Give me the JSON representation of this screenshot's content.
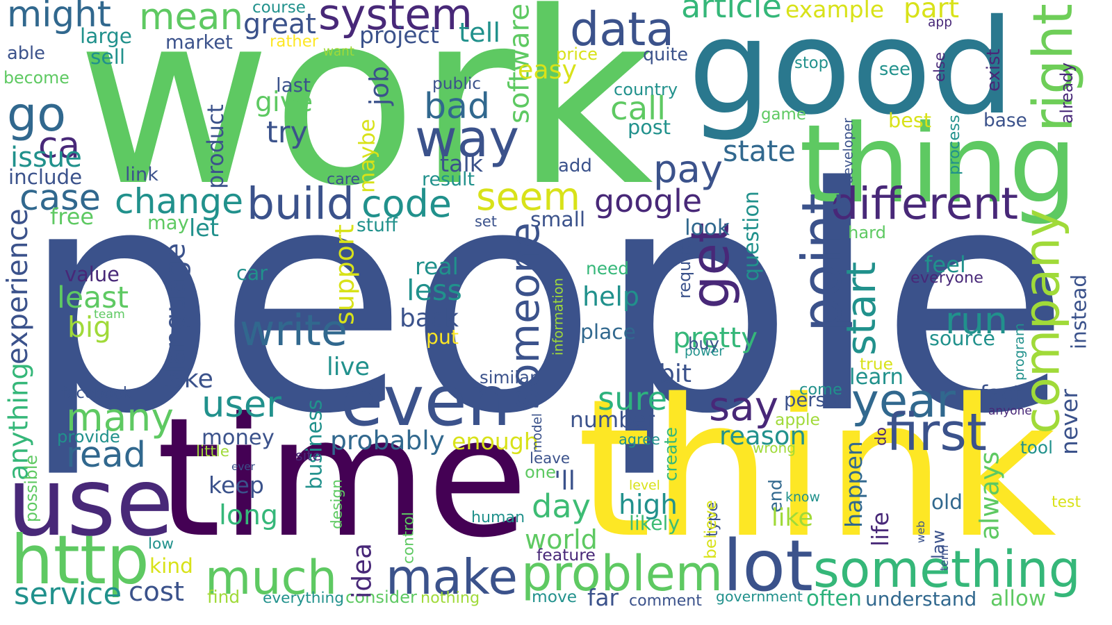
{
  "words": [
    {
      "text": "work",
      "color": "#5ec962"
    },
    {
      "text": "people",
      "color": "#3b528b"
    },
    {
      "text": "good",
      "color": "#2a788e"
    },
    {
      "text": "time",
      "color": "#440154"
    },
    {
      "text": "think",
      "color": "#fde725"
    },
    {
      "text": "use",
      "color": "#482878"
    },
    {
      "text": "thing",
      "color": "#5ec962"
    },
    {
      "text": "even",
      "color": "#3b528b"
    },
    {
      "text": "http",
      "color": "#5ec962"
    },
    {
      "text": "much",
      "color": "#5ec962"
    },
    {
      "text": "make",
      "color": "#3b528b"
    },
    {
      "text": "problem",
      "color": "#5ec962"
    },
    {
      "text": "lot",
      "color": "#3b528b"
    },
    {
      "text": "something",
      "color": "#35b779"
    },
    {
      "text": "way",
      "color": "#3b528b"
    },
    {
      "text": "data",
      "color": "#3b528b"
    },
    {
      "text": "system",
      "color": "#482878"
    },
    {
      "text": "mean",
      "color": "#5ec962"
    },
    {
      "text": "might",
      "color": "#31688e"
    },
    {
      "text": "go",
      "color": "#31688e"
    },
    {
      "text": "ca",
      "color": "#482878"
    },
    {
      "text": "case",
      "color": "#31688e"
    },
    {
      "text": "change",
      "color": "#21918c"
    },
    {
      "text": "build",
      "color": "#3b528b"
    },
    {
      "text": "code",
      "color": "#21918c"
    },
    {
      "text": "seem",
      "color": "#d8e219"
    },
    {
      "text": "google",
      "color": "#482878"
    },
    {
      "text": "different",
      "color": "#482878"
    },
    {
      "text": "pay",
      "color": "#3b528b"
    },
    {
      "text": "state",
      "color": "#31688e"
    },
    {
      "text": "bad",
      "color": "#31688e"
    },
    {
      "text": "right",
      "color": "#6ece58"
    },
    {
      "text": "company",
      "color": "#a0da39"
    },
    {
      "text": "year",
      "color": "#31688e"
    },
    {
      "text": "say",
      "color": "#482878"
    },
    {
      "text": "first",
      "color": "#3b528b"
    },
    {
      "text": "get",
      "color": "#482878"
    },
    {
      "text": "point",
      "color": "#3b528b"
    },
    {
      "text": "start",
      "color": "#21918c"
    },
    {
      "text": "many",
      "color": "#5ec962"
    },
    {
      "text": "user",
      "color": "#21918c"
    },
    {
      "text": "read",
      "color": "#31688e"
    },
    {
      "text": "write",
      "color": "#31688e"
    },
    {
      "text": "someone",
      "color": "#3b528b"
    },
    {
      "text": "run",
      "color": "#21918c"
    },
    {
      "text": "sure",
      "color": "#2db27d"
    },
    {
      "text": "probably",
      "color": "#31688e"
    },
    {
      "text": "enough",
      "color": "#d8e219"
    },
    {
      "text": "reason",
      "color": "#21918c"
    },
    {
      "text": "day",
      "color": "#3dbc74"
    },
    {
      "text": "world",
      "color": "#5ec962"
    },
    {
      "text": "high",
      "color": "#21918c"
    },
    {
      "text": "long",
      "color": "#35b779"
    },
    {
      "text": "keep",
      "color": "#3b528b"
    },
    {
      "text": "money",
      "color": "#3b528b"
    },
    {
      "text": "cost",
      "color": "#3b528b"
    },
    {
      "text": "service",
      "color": "#21918c"
    },
    {
      "text": "comment",
      "color": "#3b528b"
    },
    {
      "text": "far",
      "color": "#3b528b"
    },
    {
      "text": "move",
      "color": "#21918c"
    },
    {
      "text": "often",
      "color": "#2db27d"
    },
    {
      "text": "understand",
      "color": "#31688e"
    },
    {
      "text": "allow",
      "color": "#5ec962"
    },
    {
      "text": "government",
      "color": "#21918c"
    },
    {
      "text": "everything",
      "color": "#21918c"
    },
    {
      "text": "consider",
      "color": "#5ec962"
    },
    {
      "text": "nothing",
      "color": "#a0da39"
    },
    {
      "text": "find",
      "color": "#a0da39"
    },
    {
      "text": "idea",
      "color": "#482878"
    },
    {
      "text": "business",
      "color": "#21918c"
    },
    {
      "text": "design",
      "color": "#5ec962"
    },
    {
      "text": "less",
      "color": "#21918c"
    },
    {
      "text": "back",
      "color": "#3b528b"
    },
    {
      "text": "real",
      "color": "#21918c"
    },
    {
      "text": "help",
      "color": "#21918c"
    },
    {
      "text": "need",
      "color": "#35b779"
    },
    {
      "text": "place",
      "color": "#31688e"
    },
    {
      "text": "look",
      "color": "#31688e"
    },
    {
      "text": "hard",
      "color": "#5ec962"
    },
    {
      "text": "pretty",
      "color": "#35b779"
    },
    {
      "text": "question",
      "color": "#21918c"
    },
    {
      "text": "require",
      "color": "#3b528b"
    },
    {
      "text": "buy",
      "color": "#3b528b"
    },
    {
      "text": "bit",
      "color": "#3b528b"
    },
    {
      "text": "number",
      "color": "#3b528b"
    },
    {
      "text": "happen",
      "color": "#31688e"
    },
    {
      "text": "always",
      "color": "#5ec962"
    },
    {
      "text": "never",
      "color": "#3b528b"
    },
    {
      "text": "end",
      "color": "#31688e"
    },
    {
      "text": "like",
      "color": "#a0da39"
    },
    {
      "text": "life",
      "color": "#482878"
    },
    {
      "text": "law",
      "color": "#3b528b"
    },
    {
      "text": "old",
      "color": "#31688e"
    },
    {
      "text": "know",
      "color": "#21918c"
    },
    {
      "text": "type",
      "color": "#3b528b"
    },
    {
      "text": "believe",
      "color": "#d8e219"
    },
    {
      "text": "likely",
      "color": "#3dbc74"
    },
    {
      "text": "human",
      "color": "#21918c"
    },
    {
      "text": "level",
      "color": "#d8e219"
    },
    {
      "text": "create",
      "color": "#35b779"
    },
    {
      "text": "agree",
      "color": "#21918c"
    },
    {
      "text": "one",
      "color": "#5ec962"
    },
    {
      "text": "'ll",
      "color": "#3b528b"
    },
    {
      "text": "leave",
      "color": "#3b528b"
    },
    {
      "text": "feature",
      "color": "#482878"
    },
    {
      "text": "control",
      "color": "#5ec962"
    },
    {
      "text": "model",
      "color": "#3b528b"
    },
    {
      "text": "similar",
      "color": "#3b528b"
    },
    {
      "text": "live",
      "color": "#21918c"
    },
    {
      "text": "take",
      "color": "#3b528b"
    },
    {
      "text": "language",
      "color": "#3b528b"
    },
    {
      "text": "experience",
      "color": "#3b528b"
    },
    {
      "text": "anything",
      "color": "#35b779"
    },
    {
      "text": "value",
      "color": "#482878"
    },
    {
      "text": "least",
      "color": "#5ec962"
    },
    {
      "text": "big",
      "color": "#a0da39"
    },
    {
      "text": "team",
      "color": "#5ec962"
    },
    {
      "text": "car",
      "color": "#21918c"
    },
    {
      "text": "support",
      "color": "#d8e219"
    },
    {
      "text": "maybe",
      "color": "#d8e219"
    },
    {
      "text": "job",
      "color": "#3b528b"
    },
    {
      "text": "software",
      "color": "#5ec962"
    },
    {
      "text": "easy",
      "color": "#d8e219"
    },
    {
      "text": "call",
      "color": "#5ec962"
    },
    {
      "text": "post",
      "color": "#21918c"
    },
    {
      "text": "country",
      "color": "#21918c"
    },
    {
      "text": "quite",
      "color": "#3b528b"
    },
    {
      "text": "article",
      "color": "#35b779"
    },
    {
      "text": "example",
      "color": "#d8e219"
    },
    {
      "text": "part",
      "color": "#d8e219"
    },
    {
      "text": "stop",
      "color": "#21918c"
    },
    {
      "text": "see",
      "color": "#21918c"
    },
    {
      "text": "game",
      "color": "#5ec962"
    },
    {
      "text": "best",
      "color": "#d8e219"
    },
    {
      "text": "base",
      "color": "#3b528b"
    },
    {
      "text": "developer",
      "color": "#3b528b"
    },
    {
      "text": "process",
      "color": "#21918c"
    },
    {
      "text": "exist",
      "color": "#482878"
    },
    {
      "text": "else",
      "color": "#482878"
    },
    {
      "text": "already",
      "color": "#482878"
    },
    {
      "text": "app",
      "color": "#482878"
    },
    {
      "text": "course",
      "color": "#21918c"
    },
    {
      "text": "great",
      "color": "#3b528b"
    },
    {
      "text": "rather",
      "color": "#fde725"
    },
    {
      "text": "project",
      "color": "#3b528b"
    },
    {
      "text": "tell",
      "color": "#21918c"
    },
    {
      "text": "want",
      "color": "#a0da39"
    },
    {
      "text": "price",
      "color": "#d8e219"
    },
    {
      "text": "large",
      "color": "#21918c"
    },
    {
      "text": "market",
      "color": "#3b528b"
    },
    {
      "text": "able",
      "color": "#3b528b"
    },
    {
      "text": "sell",
      "color": "#21918c"
    },
    {
      "text": "become",
      "color": "#5ec962"
    },
    {
      "text": "last",
      "color": "#3b528b"
    },
    {
      "text": "public",
      "color": "#3b528b"
    },
    {
      "text": "give",
      "color": "#5ec962"
    },
    {
      "text": "try",
      "color": "#3b528b"
    },
    {
      "text": "issue",
      "color": "#21918c"
    },
    {
      "text": "link",
      "color": "#3b528b"
    },
    {
      "text": "include",
      "color": "#3b528b"
    },
    {
      "text": "product",
      "color": "#3b528b"
    },
    {
      "text": "care",
      "color": "#3b528b"
    },
    {
      "text": "result",
      "color": "#21918c"
    },
    {
      "text": "talk",
      "color": "#3b528b"
    },
    {
      "text": "add",
      "color": "#3b528b"
    },
    {
      "text": "free",
      "color": "#5ec962"
    },
    {
      "text": "may",
      "color": "#5ec962"
    },
    {
      "text": "let",
      "color": "#21918c"
    },
    {
      "text": "stuff",
      "color": "#21918c"
    },
    {
      "text": "set",
      "color": "#3b528b"
    },
    {
      "text": "small",
      "color": "#3b528b"
    },
    {
      "text": "information",
      "color": "#a0da39"
    },
    {
      "text": "put",
      "color": "#fde725"
    },
    {
      "text": "facebook",
      "color": "#3b528b"
    },
    {
      "text": "provide",
      "color": "#21918c"
    },
    {
      "text": "little",
      "color": "#a0da39"
    },
    {
      "text": "site",
      "color": "#482878"
    },
    {
      "text": "ever",
      "color": "#3b528b"
    },
    {
      "text": "possible",
      "color": "#5ec962"
    },
    {
      "text": "low",
      "color": "#21918c"
    },
    {
      "text": "kind",
      "color": "#d8e219"
    },
    {
      "text": "come",
      "color": "#21918c"
    },
    {
      "text": "learn",
      "color": "#21918c"
    },
    {
      "text": "person",
      "color": "#3b528b"
    },
    {
      "text": "fact",
      "color": "#3b528b"
    },
    {
      "text": "anyone",
      "color": "#482878"
    },
    {
      "text": "feel",
      "color": "#21918c"
    },
    {
      "text": "everyone",
      "color": "#482878"
    },
    {
      "text": "source",
      "color": "#21918c"
    },
    {
      "text": "true",
      "color": "#d8e219"
    },
    {
      "text": "power",
      "color": "#21918c"
    },
    {
      "text": "program",
      "color": "#21918c"
    },
    {
      "text": "instead",
      "color": "#3b528b"
    },
    {
      "text": "apple",
      "color": "#a0da39"
    },
    {
      "text": "do",
      "color": "#482878"
    },
    {
      "text": "wrong",
      "color": "#a0da39"
    },
    {
      "text": "tool",
      "color": "#21918c"
    },
    {
      "text": "test",
      "color": "#d8e219"
    },
    {
      "text": "web",
      "color": "#3b528b"
    },
    {
      "text": "term",
      "color": "#3b528b"
    }
  ]
}
